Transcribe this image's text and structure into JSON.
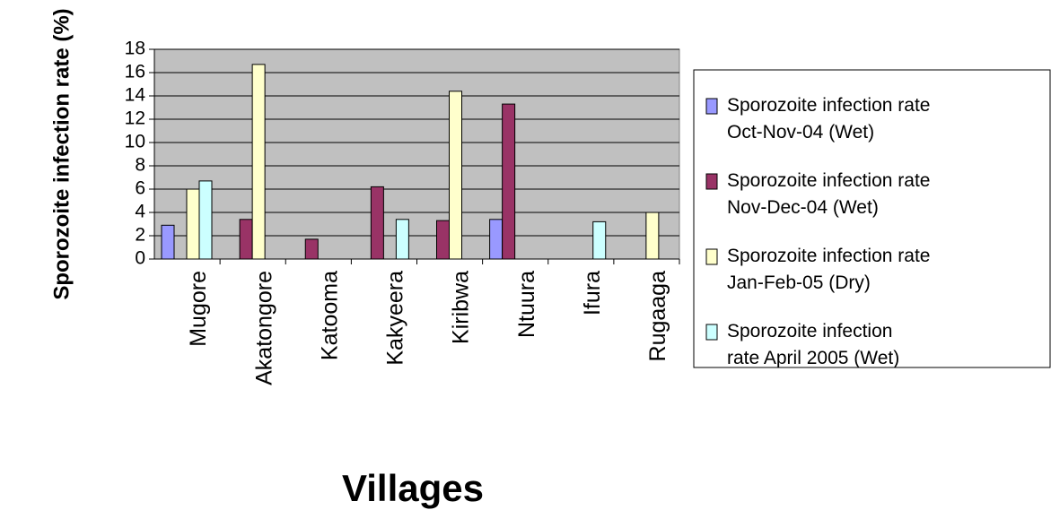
{
  "chart_data": {
    "type": "bar",
    "xlabel": "Villages",
    "ylabel": "Sporozoite infection rate (%)",
    "categories": [
      "Mugore",
      "Akatongore",
      "Katooma",
      "Kakyeera",
      "Kiribwa",
      "Ntuura",
      "Ifura",
      "Rugaaga"
    ],
    "series": [
      {
        "name": "Sporozoite infection rate Oct-Nov-04 (Wet)",
        "color": "#9999ff",
        "values": [
          2.9,
          null,
          null,
          null,
          null,
          3.4,
          null,
          null
        ]
      },
      {
        "name": "Sporozoite infection rate Nov-Dec-04 (Wet)",
        "color": "#993366",
        "values": [
          null,
          3.4,
          1.7,
          6.2,
          3.3,
          13.3,
          null,
          null
        ]
      },
      {
        "name": "Sporozoite infection rate Jan-Feb-05 (Dry)",
        "color": "#ffffcc",
        "values": [
          6.0,
          16.7,
          null,
          null,
          14.4,
          null,
          null,
          4.0
        ]
      },
      {
        "name": "Sporozoite infection rate April 2005 (Wet)",
        "color": "#ccffff",
        "values": [
          6.7,
          null,
          null,
          3.4,
          null,
          null,
          3.2,
          null
        ]
      }
    ],
    "ylim": [
      0,
      18
    ],
    "yticks": [
      0,
      2,
      4,
      6,
      8,
      10,
      12,
      14,
      16,
      18
    ],
    "grid": true,
    "legend": "right"
  }
}
